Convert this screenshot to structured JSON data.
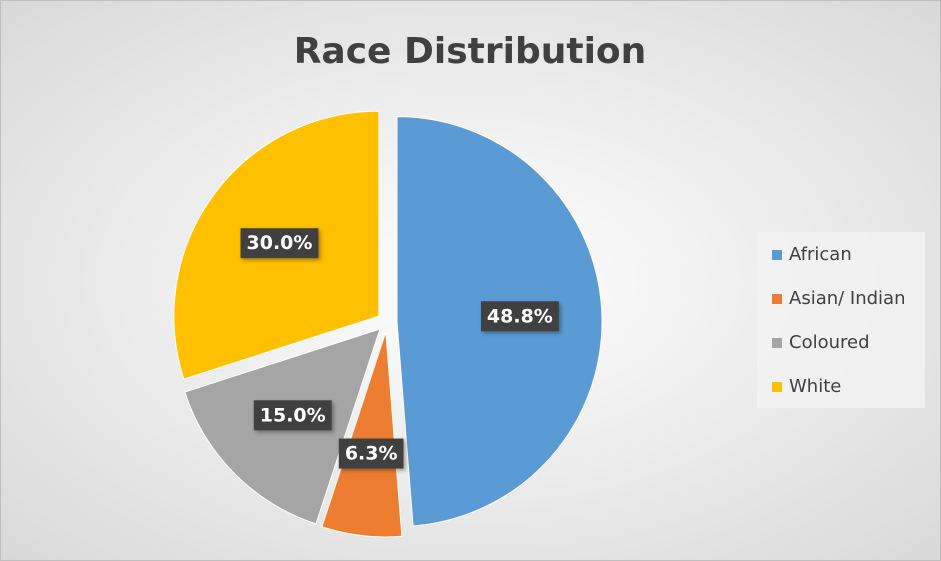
{
  "chart_data": {
    "type": "pie",
    "title": "Race Distribution",
    "categories": [
      "African",
      "Asian/ Indian",
      "Coloured",
      "White"
    ],
    "values": [
      48.8,
      6.3,
      15.0,
      30.0
    ],
    "value_labels": [
      "48.8%",
      "6.3%",
      "15.0%",
      "30.0%"
    ],
    "colors": [
      "#5b9bd5",
      "#ed7d31",
      "#a5a5a5",
      "#ffc000"
    ],
    "legend": "right"
  }
}
